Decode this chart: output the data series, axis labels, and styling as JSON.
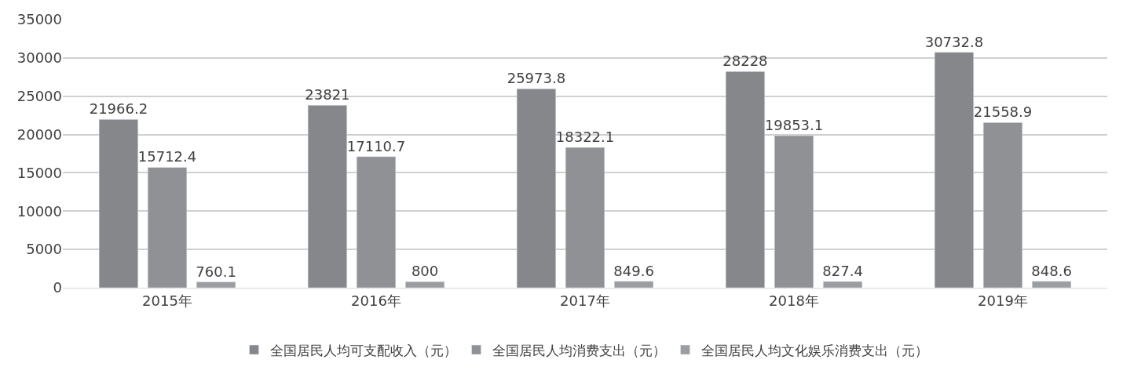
{
  "chart_data": {
    "type": "bar",
    "categories": [
      "2015年",
      "2016年",
      "2017年",
      "2018年",
      "2019年"
    ],
    "series": [
      {
        "name": "全国居民人均可支配收入（元）",
        "color": "#85878a",
        "values": [
          21966.2,
          23821,
          25973.8,
          28228,
          30732.8
        ]
      },
      {
        "name": "全国居民人均消费支出（元）",
        "color": "#8f9195",
        "values": [
          15712.4,
          17110.7,
          18322.1,
          19853.1,
          21558.9
        ]
      },
      {
        "name": "全国居民人均文化娱乐消费支出（元）",
        "color": "#9b9da0",
        "values": [
          760.1,
          800,
          849.6,
          827.4,
          848.6
        ]
      }
    ],
    "ylim": [
      0,
      35000
    ],
    "yticks": [
      0,
      5000,
      10000,
      15000,
      20000,
      25000,
      30000,
      35000
    ],
    "grid": "y",
    "legend": "bottom",
    "data_labels": true
  }
}
